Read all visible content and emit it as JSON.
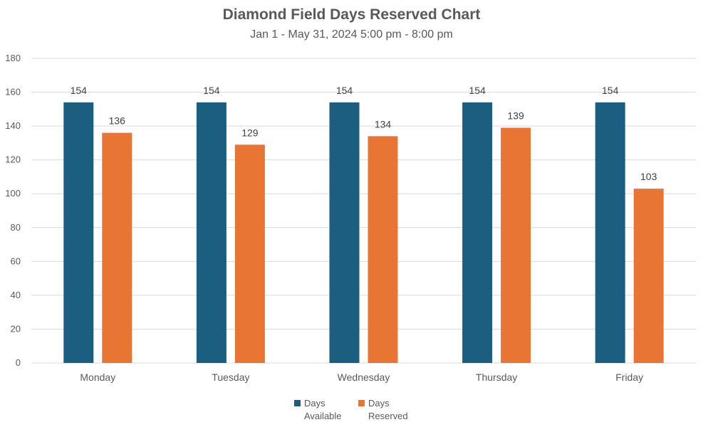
{
  "chart_data": {
    "type": "bar",
    "title": "Diamond Field Days Reserved Chart",
    "subtitle": "Jan 1 - May 31, 2024 5:00 pm - 8:00 pm",
    "categories": [
      "Monday",
      "Tuesday",
      "Wednesday",
      "Thursday",
      "Friday"
    ],
    "series": [
      {
        "name": "Days Available",
        "name_lines": [
          "Days",
          "Available"
        ],
        "color": "#1b5e80",
        "values": [
          154,
          154,
          154,
          154,
          154
        ]
      },
      {
        "name": "Days Reserved",
        "name_lines": [
          "Days",
          "Reserved"
        ],
        "color": "#e87533",
        "values": [
          136,
          129,
          134,
          139,
          103
        ]
      }
    ],
    "ylim": [
      0,
      180
    ],
    "yticks": [
      0,
      20,
      40,
      60,
      80,
      100,
      120,
      140,
      160,
      180
    ],
    "grid": true,
    "legend": "bottom",
    "data_labels": true
  }
}
